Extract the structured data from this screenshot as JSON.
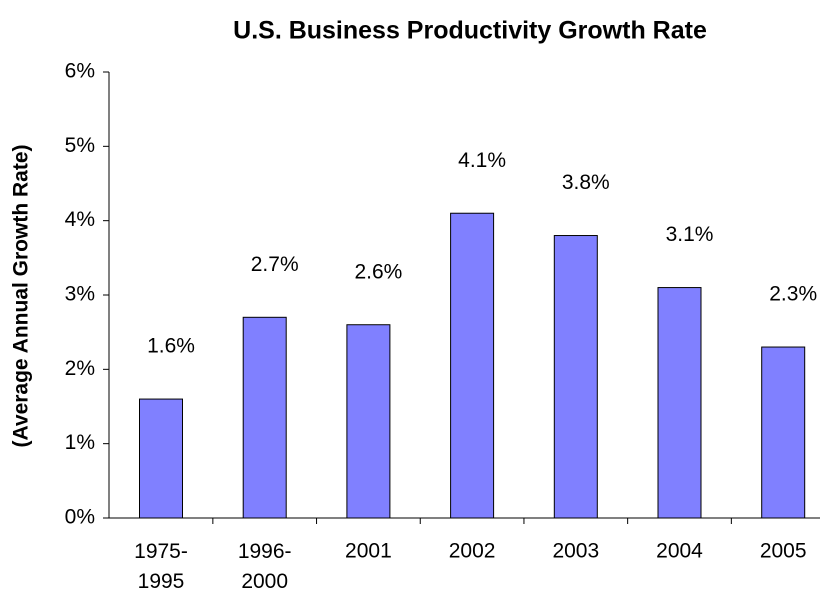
{
  "chart_data": {
    "type": "bar",
    "title": "U.S. Business Productivity Growth Rate",
    "y_label": "(Average Annual Growth Rate)",
    "categories": [
      "1975-1995",
      "1996-2000",
      "2001",
      "2002",
      "2003",
      "2004",
      "2005"
    ],
    "values": [
      1.6,
      2.7,
      2.6,
      4.1,
      3.8,
      3.1,
      2.3
    ],
    "value_labels": [
      "1.6%",
      "2.7%",
      "2.6%",
      "4.1%",
      "3.8%",
      "3.1%",
      "2.3%"
    ],
    "color": "#8080ff",
    "ylim": [
      0,
      6
    ],
    "yticks": [
      {
        "value": 0,
        "label": "0%"
      },
      {
        "value": 1,
        "label": "1%"
      },
      {
        "value": 2,
        "label": "2%"
      },
      {
        "value": 3,
        "label": "3%"
      },
      {
        "value": 4,
        "label": "4%"
      },
      {
        "value": 5,
        "label": "5%"
      },
      {
        "value": 6,
        "label": "6%"
      }
    ],
    "grid": false
  }
}
